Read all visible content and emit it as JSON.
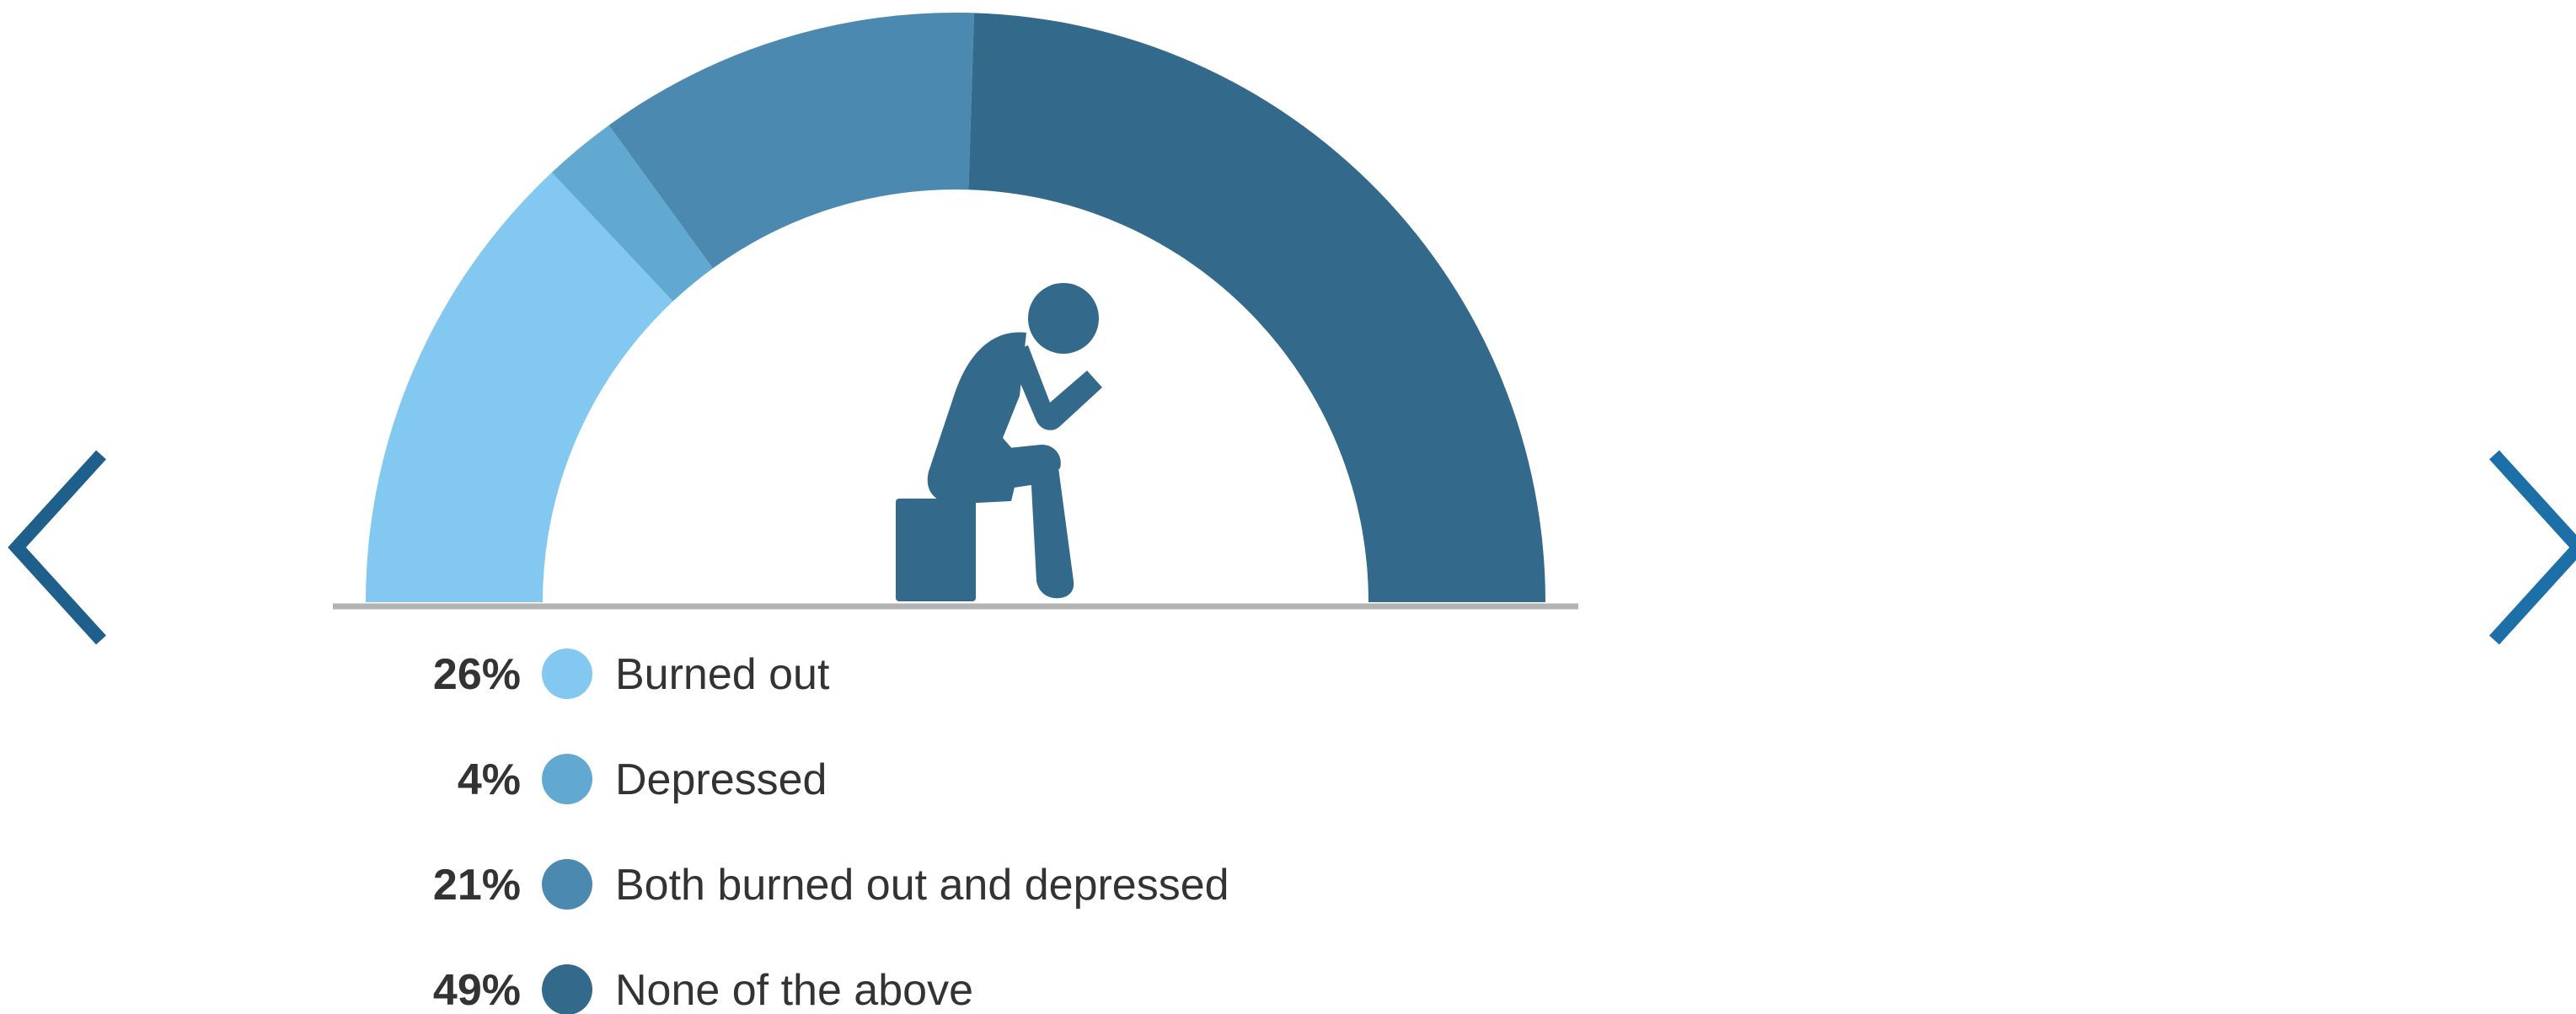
{
  "navigation": {
    "prev_icon": "chevron-left-icon",
    "next_icon": "chevron-right-icon",
    "arrow_color": "#1f5f8b"
  },
  "chart_data": {
    "type": "pie",
    "subtype": "half-donut",
    "title": "",
    "series": [
      {
        "name": "Burned out",
        "value": 26,
        "label": "26%",
        "color": "#82c8f0"
      },
      {
        "name": "Depressed",
        "value": 4,
        "label": "4%",
        "color": "#62a9d2"
      },
      {
        "name": "Both burned out and depressed",
        "value": 21,
        "label": "21%",
        "color": "#4b89b0"
      },
      {
        "name": "None of the above",
        "value": 49,
        "label": "49%",
        "color": "#336a8b"
      }
    ],
    "center_icon": "person-sitting-thinking-icon",
    "legend_position": "bottom-left",
    "baseline_color": "#b3b3b3"
  }
}
